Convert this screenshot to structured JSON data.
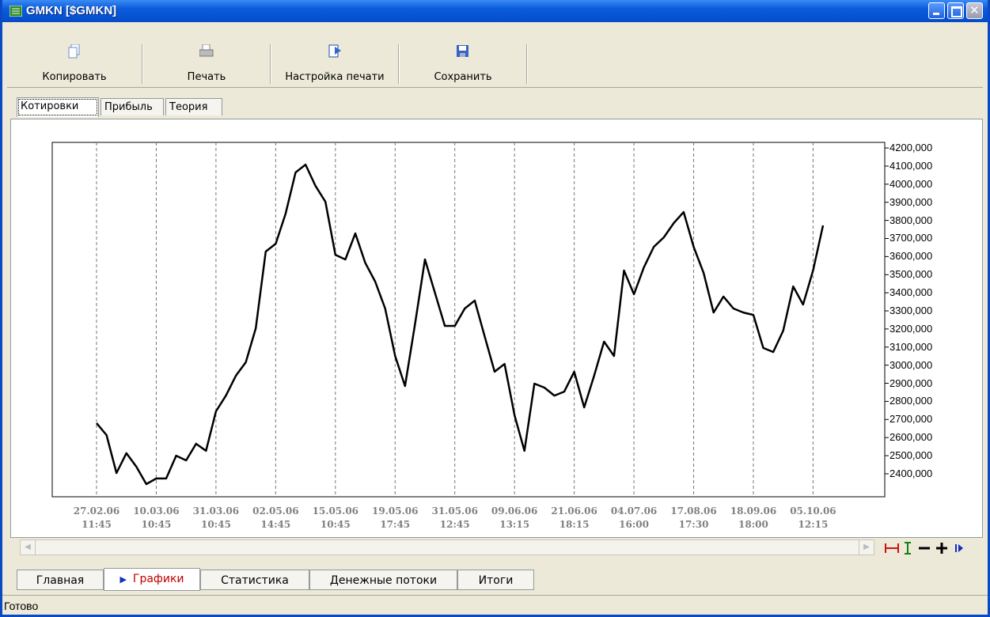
{
  "window": {
    "title": "GMKN [$GMKN]"
  },
  "toolbar": [
    "Копировать",
    "Печать",
    "Настройка печати",
    "Сохранить"
  ],
  "tabs": [
    "Котировки",
    "Прибыль",
    "Теория"
  ],
  "chart_data": {
    "type": "line",
    "x": [
      "27.02.06\n11:45",
      null,
      null,
      null,
      null,
      null,
      "10.03.06\n10:45",
      null,
      null,
      null,
      null,
      null,
      "31.03.06\n10:45",
      null,
      null,
      null,
      null,
      null,
      "02.05.06\n14:45",
      null,
      null,
      null,
      null,
      null,
      "15.05.06\n10:45",
      null,
      null,
      null,
      null,
      null,
      "19.05.06\n17:45",
      null,
      null,
      null,
      null,
      null,
      "31.05.06\n12:45",
      null,
      null,
      null,
      null,
      null,
      "09.06.06\n13:15",
      null,
      null,
      null,
      null,
      null,
      "21.06.06\n18:15",
      null,
      null,
      null,
      null,
      null,
      "04.07.06\n16:00",
      null,
      null,
      null,
      null,
      null,
      "17.08.06\n17:30",
      null,
      null,
      null,
      null,
      null,
      "18.09.06\n18:00",
      null,
      null,
      null,
      null,
      null,
      "05.10.06\n12:15",
      null
    ],
    "values": [
      2680,
      2614,
      2404,
      2514,
      2439,
      2343,
      2374,
      2374,
      2500,
      2474,
      2566,
      2527,
      2745,
      2832,
      2942,
      3016,
      3204,
      3628,
      3671,
      3837,
      4065,
      4108,
      3990,
      3903,
      3610,
      3584,
      3728,
      3566,
      3462,
      3313,
      3051,
      2885,
      3226,
      3584,
      3400,
      3217,
      3217,
      3313,
      3357,
      3160,
      2964,
      3007,
      2723,
      2527,
      2898,
      2876,
      2832,
      2854,
      2964,
      2767,
      2942,
      3130,
      3051,
      3523,
      3392,
      3540,
      3654,
      3706,
      3785,
      3846,
      3654,
      3510,
      3291,
      3379,
      3313,
      3291,
      3278,
      3095,
      3073,
      3191,
      3435,
      3335,
      3523,
      3772
    ],
    "color": "#000000",
    "ylim": [
      2273,
      4231
    ],
    "yticks": [
      {
        "value": 4200,
        "label": "4200,000"
      },
      {
        "value": 4100,
        "label": "4100,000"
      },
      {
        "value": 4000,
        "label": "4000,000"
      },
      {
        "value": 3900,
        "label": "3900,000"
      },
      {
        "value": 3800,
        "label": "3800,000"
      },
      {
        "value": 3700,
        "label": "3700,000"
      },
      {
        "value": 3600,
        "label": "3600,000"
      },
      {
        "value": 3500,
        "label": "3500,000"
      },
      {
        "value": 3400,
        "label": "3400,000"
      },
      {
        "value": 3300,
        "label": "3300,000"
      },
      {
        "value": 3200,
        "label": "3200,000"
      },
      {
        "value": 3100,
        "label": "3100,000"
      },
      {
        "value": 3000,
        "label": "3000,000"
      },
      {
        "value": 2900,
        "label": "2900,000"
      },
      {
        "value": 2800,
        "label": "2800,000"
      },
      {
        "value": 2700,
        "label": "2700,000"
      },
      {
        "value": 2600,
        "label": "2600,000"
      },
      {
        "value": 2500,
        "label": "2500,000"
      },
      {
        "value": 2400,
        "label": "2400,000"
      }
    ],
    "x_grid": true
  },
  "bottom_tabs": [
    "Главная",
    "Графики",
    "Статистика",
    "Денежные потоки",
    "Итоги"
  ],
  "status": "Готово"
}
